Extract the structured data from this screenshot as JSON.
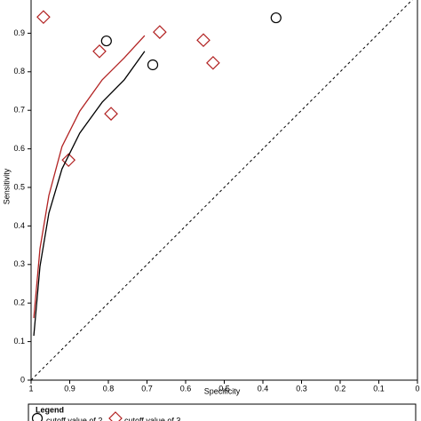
{
  "chart_data": {
    "type": "scatter",
    "x_label": "Specificity",
    "y_label": "Sensitivity",
    "xlim": [
      1,
      0
    ],
    "ylim": [
      0,
      1
    ],
    "xticks": [
      1,
      0.9,
      0.8,
      0.7,
      0.6,
      0.5,
      0.4,
      0.3,
      0.2,
      0.1,
      0
    ],
    "yticks": [
      0,
      0.1,
      0.2,
      0.3,
      0.4,
      0.5,
      0.6,
      0.7,
      0.8,
      0.9
    ],
    "legend_title": "Legend",
    "series": [
      {
        "name": "cutoff value of 2",
        "marker": "circle",
        "color": "#000000",
        "x": [
          0.805,
          0.685,
          0.366
        ],
        "values": [
          0.88,
          0.818,
          0.94
        ]
      },
      {
        "name": "cutoff value of 3",
        "marker": "diamond",
        "color": "#b22222",
        "x": [
          0.968,
          0.823,
          0.667,
          0.554,
          0.529,
          0.793,
          0.903
        ],
        "values": [
          0.942,
          0.853,
          0.903,
          0.882,
          0.823,
          0.691,
          0.571
        ]
      },
      {
        "marker": "line",
        "color": "#000000",
        "x": [
          0.993,
          0.977,
          0.954,
          0.92,
          0.874,
          0.816,
          0.759,
          0.706
        ],
        "values": [
          0.115,
          0.295,
          0.433,
          0.548,
          0.641,
          0.721,
          0.779,
          0.853
        ]
      },
      {
        "marker": "line",
        "color": "#b22222",
        "x": [
          0.993,
          0.977,
          0.954,
          0.92,
          0.874,
          0.816,
          0.759,
          0.706
        ],
        "values": [
          0.161,
          0.341,
          0.479,
          0.606,
          0.698,
          0.779,
          0.836,
          0.894
        ]
      }
    ]
  }
}
